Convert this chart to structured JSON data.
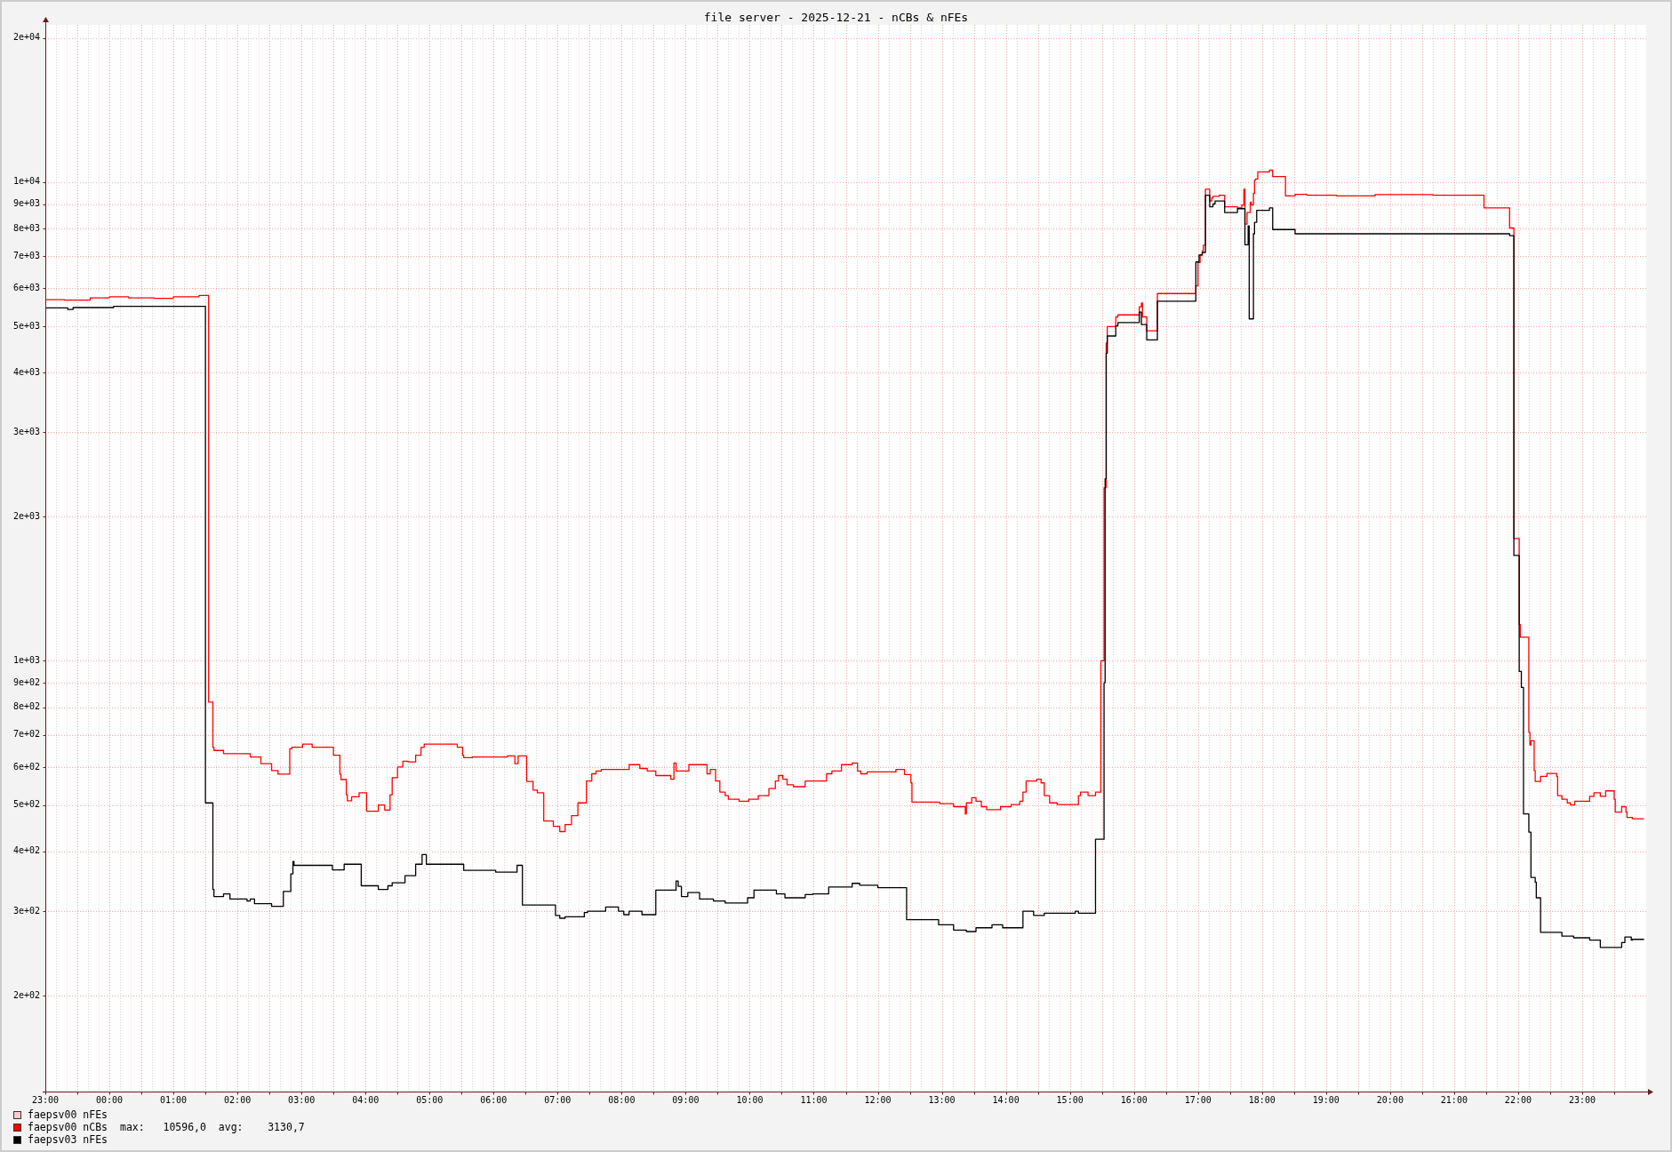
{
  "chart_data": {
    "type": "step",
    "title": "file server - 2025-12-21 - nCBs & nFEs",
    "annotations": [
      "max:   10596,0  avg:    3130,7"
    ],
    "xlim": [
      "2025-12-20T23:00",
      "2025-12-22T00:00"
    ],
    "xticks": [
      {
        "value": "2025-12-20T23:00",
        "label": "23:00"
      },
      {
        "value": "2025-12-20T23:30",
        "label": null
      },
      {
        "value": "2025-12-21T00:00",
        "label": "00:00"
      },
      {
        "value": "2025-12-21T00:30",
        "label": null
      },
      {
        "value": "2025-12-21T01:00",
        "label": "01:00"
      },
      {
        "value": "2025-12-21T01:30",
        "label": null
      },
      {
        "value": "2025-12-21T02:00",
        "label": "02:00"
      },
      {
        "value": "2025-12-21T02:30",
        "label": null
      },
      {
        "value": "2025-12-21T03:00",
        "label": "03:00"
      },
      {
        "value": "2025-12-21T03:30",
        "label": null
      },
      {
        "value": "2025-12-21T04:00",
        "label": "04:00"
      },
      {
        "value": "2025-12-21T04:30",
        "label": null
      },
      {
        "value": "2025-12-21T05:00",
        "label": "05:00"
      },
      {
        "value": "2025-12-21T05:30",
        "label": null
      },
      {
        "value": "2025-12-21T06:00",
        "label": "06:00"
      },
      {
        "value": "2025-12-21T06:30",
        "label": null
      },
      {
        "value": "2025-12-21T07:00",
        "label": "07:00"
      },
      {
        "value": "2025-12-21T07:30",
        "label": null
      },
      {
        "value": "2025-12-21T08:00",
        "label": "08:00"
      },
      {
        "value": "2025-12-21T08:30",
        "label": null
      },
      {
        "value": "2025-12-21T09:00",
        "label": "09:00"
      },
      {
        "value": "2025-12-21T09:30",
        "label": null
      },
      {
        "value": "2025-12-21T10:00",
        "label": "10:00"
      },
      {
        "value": "2025-12-21T10:30",
        "label": null
      },
      {
        "value": "2025-12-21T11:00",
        "label": "11:00"
      },
      {
        "value": "2025-12-21T11:30",
        "label": null
      },
      {
        "value": "2025-12-21T12:00",
        "label": "12:00"
      },
      {
        "value": "2025-12-21T12:30",
        "label": null
      },
      {
        "value": "2025-12-21T13:00",
        "label": "13:00"
      },
      {
        "value": "2025-12-21T13:30",
        "label": null
      },
      {
        "value": "2025-12-21T14:00",
        "label": "14:00"
      },
      {
        "value": "2025-12-21T14:30",
        "label": null
      },
      {
        "value": "2025-12-21T15:00",
        "label": "15:00"
      },
      {
        "value": "2025-12-21T15:30",
        "label": null
      },
      {
        "value": "2025-12-21T16:00",
        "label": "16:00"
      },
      {
        "value": "2025-12-21T16:30",
        "label": null
      },
      {
        "value": "2025-12-21T17:00",
        "label": "17:00"
      },
      {
        "value": "2025-12-21T17:30",
        "label": null
      },
      {
        "value": "2025-12-21T18:00",
        "label": "18:00"
      },
      {
        "value": "2025-12-21T18:30",
        "label": null
      },
      {
        "value": "2025-12-21T19:00",
        "label": "19:00"
      },
      {
        "value": "2025-12-21T19:30",
        "label": null
      },
      {
        "value": "2025-12-21T20:00",
        "label": "20:00"
      },
      {
        "value": "2025-12-21T20:30",
        "label": null
      },
      {
        "value": "2025-12-21T21:00",
        "label": "21:00"
      },
      {
        "value": "2025-12-21T21:30",
        "label": null
      },
      {
        "value": "2025-12-21T22:00",
        "label": "22:00"
      },
      {
        "value": "2025-12-21T22:30",
        "label": null
      },
      {
        "value": "2025-12-21T23:00",
        "label": "23:00"
      },
      {
        "value": "2025-12-21T23:30",
        "label": null
      }
    ],
    "ylim": [
      126,
      21300
    ],
    "yticks": [
      {
        "value": 200,
        "label": "2e+02"
      },
      {
        "value": 300,
        "label": "3e+02"
      },
      {
        "value": 400,
        "label": "4e+02"
      },
      {
        "value": 500,
        "label": "5e+02"
      },
      {
        "value": 600,
        "label": "6e+02"
      },
      {
        "value": 700,
        "label": "7e+02"
      },
      {
        "value": 800,
        "label": "8e+02"
      },
      {
        "value": 900,
        "label": "9e+02"
      },
      {
        "value": 1000,
        "label": "1e+03"
      },
      {
        "value": 2000,
        "label": "2e+03"
      },
      {
        "value": 3000,
        "label": "3e+03"
      },
      {
        "value": 4000,
        "label": "4e+03"
      },
      {
        "value": 5000,
        "label": "5e+03"
      },
      {
        "value": 6000,
        "label": "6e+03"
      },
      {
        "value": 7000,
        "label": "7e+03"
      },
      {
        "value": 8000,
        "label": "8e+03"
      },
      {
        "value": 9000,
        "label": "9e+03"
      },
      {
        "value": 10000,
        "label": "1e+04"
      },
      {
        "value": 20000,
        "label": "2e+04"
      }
    ],
    "log": true,
    "grid": true,
    "legend": "bottom left",
    "series": [
      {
        "name": "faepsv00 nFEs",
        "color": "#ffcccc"
      },
      {
        "name": "faepsv00 nCBs",
        "color": "#ff0000",
        "x": [
          "2025-12-20T23:00",
          "2025-12-20T23:18",
          "2025-12-20T23:42",
          "2025-12-21T00:00",
          "2025-12-21T00:18",
          "2025-12-21T00:42",
          "2025-12-21T01:00",
          "2025-12-21T01:24",
          "2025-12-21T01:33",
          "2025-12-21T01:37",
          "2025-12-21T01:38",
          "2025-12-21T01:47",
          "2025-12-21T02:12",
          "2025-12-21T02:22",
          "2025-12-21T02:32",
          "2025-12-21T02:38",
          "2025-12-21T02:49",
          "2025-12-21T02:51",
          "2025-12-21T03:01",
          "2025-12-21T03:10",
          "2025-12-21T03:30",
          "2025-12-21T03:36",
          "2025-12-21T03:37",
          "2025-12-21T03:42",
          "2025-12-21T03:43",
          "2025-12-21T03:47",
          "2025-12-21T03:54",
          "2025-12-21T04:01",
          "2025-12-21T04:12",
          "2025-12-21T04:18",
          "2025-12-21T04:23",
          "2025-12-21T04:25",
          "2025-12-21T04:30",
          "2025-12-21T04:35",
          "2025-12-21T04:40",
          "2025-12-21T04:47",
          "2025-12-21T04:52",
          "2025-12-21T04:55",
          "2025-12-21T05:05",
          "2025-12-21T05:26",
          "2025-12-21T05:31",
          "2025-12-21T05:32",
          "2025-12-21T05:40",
          "2025-12-21T06:13",
          "2025-12-21T06:20",
          "2025-12-21T06:23",
          "2025-12-21T06:31",
          "2025-12-21T06:37",
          "2025-12-21T06:41",
          "2025-12-21T06:47",
          "2025-12-21T06:56",
          "2025-12-21T07:02",
          "2025-12-21T07:07",
          "2025-12-21T07:13",
          "2025-12-21T07:19",
          "2025-12-21T07:27",
          "2025-12-21T07:32",
          "2025-12-21T07:36",
          "2025-12-21T07:41",
          "2025-12-21T08:07",
          "2025-12-21T08:17",
          "2025-12-21T08:24",
          "2025-12-21T08:32",
          "2025-12-21T08:46",
          "2025-12-21T08:49",
          "2025-12-21T08:51",
          "2025-12-21T09:03",
          "2025-12-21T09:20",
          "2025-12-21T09:23",
          "2025-12-21T09:28",
          "2025-12-21T09:32",
          "2025-12-21T09:37",
          "2025-12-21T09:40",
          "2025-12-21T09:50",
          "2025-12-21T09:59",
          "2025-12-21T10:08",
          "2025-12-21T10:18",
          "2025-12-21T10:24",
          "2025-12-21T10:27",
          "2025-12-21T10:31",
          "2025-12-21T10:35",
          "2025-12-21T10:41",
          "2025-12-21T10:52",
          "2025-12-21T11:12",
          "2025-12-21T11:17",
          "2025-12-21T11:26",
          "2025-12-21T11:36",
          "2025-12-21T11:41",
          "2025-12-21T11:44",
          "2025-12-21T11:50",
          "2025-12-21T12:17",
          "2025-12-21T12:25",
          "2025-12-21T12:31",
          "2025-12-21T12:32",
          "2025-12-21T12:58",
          "2025-12-21T13:11",
          "2025-12-21T13:22",
          "2025-12-21T13:23",
          "2025-12-21T13:28",
          "2025-12-21T13:32",
          "2025-12-21T13:37",
          "2025-12-21T13:42",
          "2025-12-21T13:55",
          "2025-12-21T14:05",
          "2025-12-21T14:13",
          "2025-12-21T14:16",
          "2025-12-21T14:19",
          "2025-12-21T14:29",
          "2025-12-21T14:33",
          "2025-12-21T14:36",
          "2025-12-21T14:41",
          "2025-12-21T14:48",
          "2025-12-21T15:08",
          "2025-12-21T15:10",
          "2025-12-21T15:17",
          "2025-12-21T15:24",
          "2025-12-21T15:29",
          "2025-12-21T15:32",
          "2025-12-21T15:34",
          "2025-12-21T15:35",
          "2025-12-21T15:43",
          "2025-12-21T15:45",
          "2025-12-21T16:05",
          "2025-12-21T16:07",
          "2025-12-21T16:08",
          "2025-12-21T16:12",
          "2025-12-21T16:22",
          "2025-12-21T16:58",
          "2025-12-21T17:00",
          "2025-12-21T17:02",
          "2025-12-21T17:04",
          "2025-12-21T17:05",
          "2025-12-21T17:07",
          "2025-12-21T17:11",
          "2025-12-21T17:13",
          "2025-12-21T17:14",
          "2025-12-21T17:20",
          "2025-12-21T17:25",
          "2025-12-21T17:37",
          "2025-12-21T17:41",
          "2025-12-21T17:43",
          "2025-12-21T17:44",
          "2025-12-21T17:46",
          "2025-12-21T17:49",
          "2025-12-21T17:50",
          "2025-12-21T17:52",
          "2025-12-21T17:53",
          "2025-12-21T17:54",
          "2025-12-21T17:56",
          "2025-12-21T18:07",
          "2025-12-21T18:10",
          "2025-12-21T18:22",
          "2025-12-21T18:31",
          "2025-12-21T18:42",
          "2025-12-21T19:10",
          "2025-12-21T19:46",
          "2025-12-21T20:40",
          "2025-12-21T21:28",
          "2025-12-21T21:52",
          "2025-12-21T21:56",
          "2025-12-21T22:01",
          "2025-12-21T22:02",
          "2025-12-21T22:10",
          "2025-12-21T22:11",
          "2025-12-21T22:12",
          "2025-12-21T22:15",
          "2025-12-21T22:16",
          "2025-12-21T22:21",
          "2025-12-21T22:27",
          "2025-12-21T22:36",
          "2025-12-21T22:37",
          "2025-12-21T22:41",
          "2025-12-21T22:46",
          "2025-12-21T22:49",
          "2025-12-21T22:53",
          "2025-12-21T23:07",
          "2025-12-21T23:11",
          "2025-12-21T23:17",
          "2025-12-21T23:22",
          "2025-12-21T23:30",
          "2025-12-21T23:31",
          "2025-12-21T23:37",
          "2025-12-21T23:41",
          "2025-12-21T23:42",
          "2025-12-21T23:47",
          "2025-12-21T23:58"
        ],
        "values": [
          5650,
          5680,
          5670,
          5730,
          5760,
          5730,
          5720,
          5760,
          5800,
          820,
          660,
          650,
          640,
          630,
          610,
          590,
          580,
          655,
          660,
          670,
          660,
          635,
          580,
          565,
          525,
          510,
          520,
          530,
          485,
          500,
          488,
          525,
          570,
          600,
          617,
          615,
          635,
          660,
          670,
          670,
          660,
          635,
          628,
          630,
          633,
          610,
          633,
          560,
          537,
          530,
          463,
          451,
          440,
          455,
          475,
          505,
          561,
          581,
          589,
          593,
          607,
          596,
          589,
          576,
          566,
          612,
          589,
          607,
          581,
          593,
          561,
          532,
          523,
          514,
          509,
          514,
          523,
          541,
          561,
          576,
          566,
          551,
          546,
          561,
          581,
          589,
          607,
          612,
          589,
          581,
          586,
          593,
          579,
          556,
          507,
          503,
          496,
          479,
          505,
          518,
          509,
          496,
          489,
          496,
          501,
          509,
          532,
          561,
          566,
          556,
          523,
          505,
          501,
          523,
          532,
          523,
          532,
          1000,
          2300,
          4610,
          4990,
          5230,
          5280,
          5490,
          5590,
          5230,
          4890,
          5850,
          6070,
          6790,
          7040,
          7180,
          7380,
          9660,
          9130,
          9270,
          9340,
          9390,
          8880,
          8830,
          8960,
          9660,
          8170,
          8640,
          9080,
          8960,
          9480,
          10100,
          10150,
          10500,
          10596,
          10270,
          9360,
          9430,
          9390,
          9360,
          9420,
          9390,
          8830,
          8020,
          1800,
          1190,
          1120,
          709,
          667,
          681,
          590,
          560,
          574,
          582,
          574,
          523,
          514,
          505,
          500,
          509,
          521,
          530,
          521,
          535,
          514,
          483,
          496,
          483,
          471,
          468
        ]
      },
      {
        "name": "faepsv03 nFEs",
        "color": "#000000",
        "x": [
          "2025-12-20T23:00",
          "2025-12-20T23:21",
          "2025-12-20T23:26",
          "2025-12-21T00:04",
          "2025-12-21T01:30",
          "2025-12-21T01:37",
          "2025-12-21T01:38",
          "2025-12-21T01:47",
          "2025-12-21T01:53",
          "2025-12-21T02:09",
          "2025-12-21T02:12",
          "2025-12-21T02:16",
          "2025-12-21T02:32",
          "2025-12-21T02:43",
          "2025-12-21T02:50",
          "2025-12-21T02:52",
          "2025-12-21T02:53",
          "2025-12-21T03:29",
          "2025-12-21T03:40",
          "2025-12-21T03:56",
          "2025-12-21T04:12",
          "2025-12-21T04:21",
          "2025-12-21T04:25",
          "2025-12-21T04:37",
          "2025-12-21T04:47",
          "2025-12-21T04:53",
          "2025-12-21T04:57",
          "2025-12-21T05:32",
          "2025-12-21T06:02",
          "2025-12-21T06:22",
          "2025-12-21T06:27",
          "2025-12-21T06:58",
          "2025-12-21T07:02",
          "2025-12-21T07:07",
          "2025-12-21T07:25",
          "2025-12-21T07:28",
          "2025-12-21T07:45",
          "2025-12-21T07:57",
          "2025-12-21T08:02",
          "2025-12-21T08:07",
          "2025-12-21T08:19",
          "2025-12-21T08:32",
          "2025-12-21T08:51",
          "2025-12-21T08:53",
          "2025-12-21T08:56",
          "2025-12-21T09:02",
          "2025-12-21T09:13",
          "2025-12-21T09:26",
          "2025-12-21T09:37",
          "2025-12-21T09:58",
          "2025-12-21T10:04",
          "2025-12-21T10:25",
          "2025-12-21T10:33",
          "2025-12-21T10:52",
          "2025-12-21T10:59",
          "2025-12-21T11:14",
          "2025-12-21T11:36",
          "2025-12-21T11:43",
          "2025-12-21T12:00",
          "2025-12-21T12:27",
          "2025-12-21T12:57",
          "2025-12-21T13:11",
          "2025-12-21T13:23",
          "2025-12-21T13:32",
          "2025-12-21T13:47",
          "2025-12-21T13:57",
          "2025-12-21T14:16",
          "2025-12-21T14:26",
          "2025-12-21T14:36",
          "2025-12-21T15:05",
          "2025-12-21T15:08",
          "2025-12-21T15:24",
          "2025-12-21T15:32",
          "2025-12-21T15:33",
          "2025-12-21T15:34",
          "2025-12-21T15:35",
          "2025-12-21T15:43",
          "2025-12-21T15:45",
          "2025-12-21T16:05",
          "2025-12-21T16:07",
          "2025-12-21T16:12",
          "2025-12-21T16:22",
          "2025-12-21T16:58",
          "2025-12-21T17:01",
          "2025-12-21T17:04",
          "2025-12-21T17:07",
          "2025-12-21T17:11",
          "2025-12-21T17:14",
          "2025-12-21T17:16",
          "2025-12-21T17:25",
          "2025-12-21T17:37",
          "2025-12-21T17:44",
          "2025-12-21T17:47",
          "2025-12-21T17:48",
          "2025-12-21T17:52",
          "2025-12-21T17:53",
          "2025-12-21T17:55",
          "2025-12-21T18:07",
          "2025-12-21T18:10",
          "2025-12-21T18:31",
          "2025-12-21T21:52",
          "2025-12-21T21:56",
          "2025-12-21T22:01",
          "2025-12-21T22:03",
          "2025-12-21T22:05",
          "2025-12-21T22:10",
          "2025-12-21T22:12",
          "2025-12-21T22:16",
          "2025-12-21T22:17",
          "2025-12-21T22:21",
          "2025-12-21T22:41",
          "2025-12-21T22:52",
          "2025-12-21T23:07",
          "2025-12-21T23:17",
          "2025-12-21T23:37",
          "2025-12-21T23:40",
          "2025-12-21T23:46",
          "2025-12-21T23:47",
          "2025-12-21T23:58"
        ],
        "values": [
          5420,
          5460,
          5420,
          5470,
          5500,
          505,
          333,
          322,
          326,
          318,
          315,
          318,
          311,
          307,
          330,
          359,
          381,
          374,
          366,
          376,
          339,
          333,
          339,
          344,
          356,
          376,
          394,
          376,
          365,
          362,
          374,
          309,
          294,
          290,
          292,
          298,
          300,
          306,
          300,
          295,
          300,
          295,
          332,
          347,
          338,
          322,
          328,
          318,
          315,
          312,
          320,
          332,
          326,
          320,
          325,
          326,
          337,
          343,
          340,
          336,
          288,
          281,
          274,
          272,
          277,
          281,
          277,
          300,
          294,
          297,
          300,
          297,
          424,
          900,
          2400,
          4390,
          4770,
          5010,
          5090,
          5350,
          5040,
          4680,
          5640,
          6810,
          7040,
          7130,
          9390,
          8880,
          9000,
          9130,
          8640,
          8800,
          7400,
          8100,
          5180,
          7800,
          8240,
          8730,
          8830,
          7960,
          7800,
          7730,
          1660,
          950,
          880,
          479,
          439,
          353,
          345,
          320,
          271,
          266,
          264,
          261,
          252,
          258,
          265,
          261,
          262
        ]
      }
    ]
  }
}
